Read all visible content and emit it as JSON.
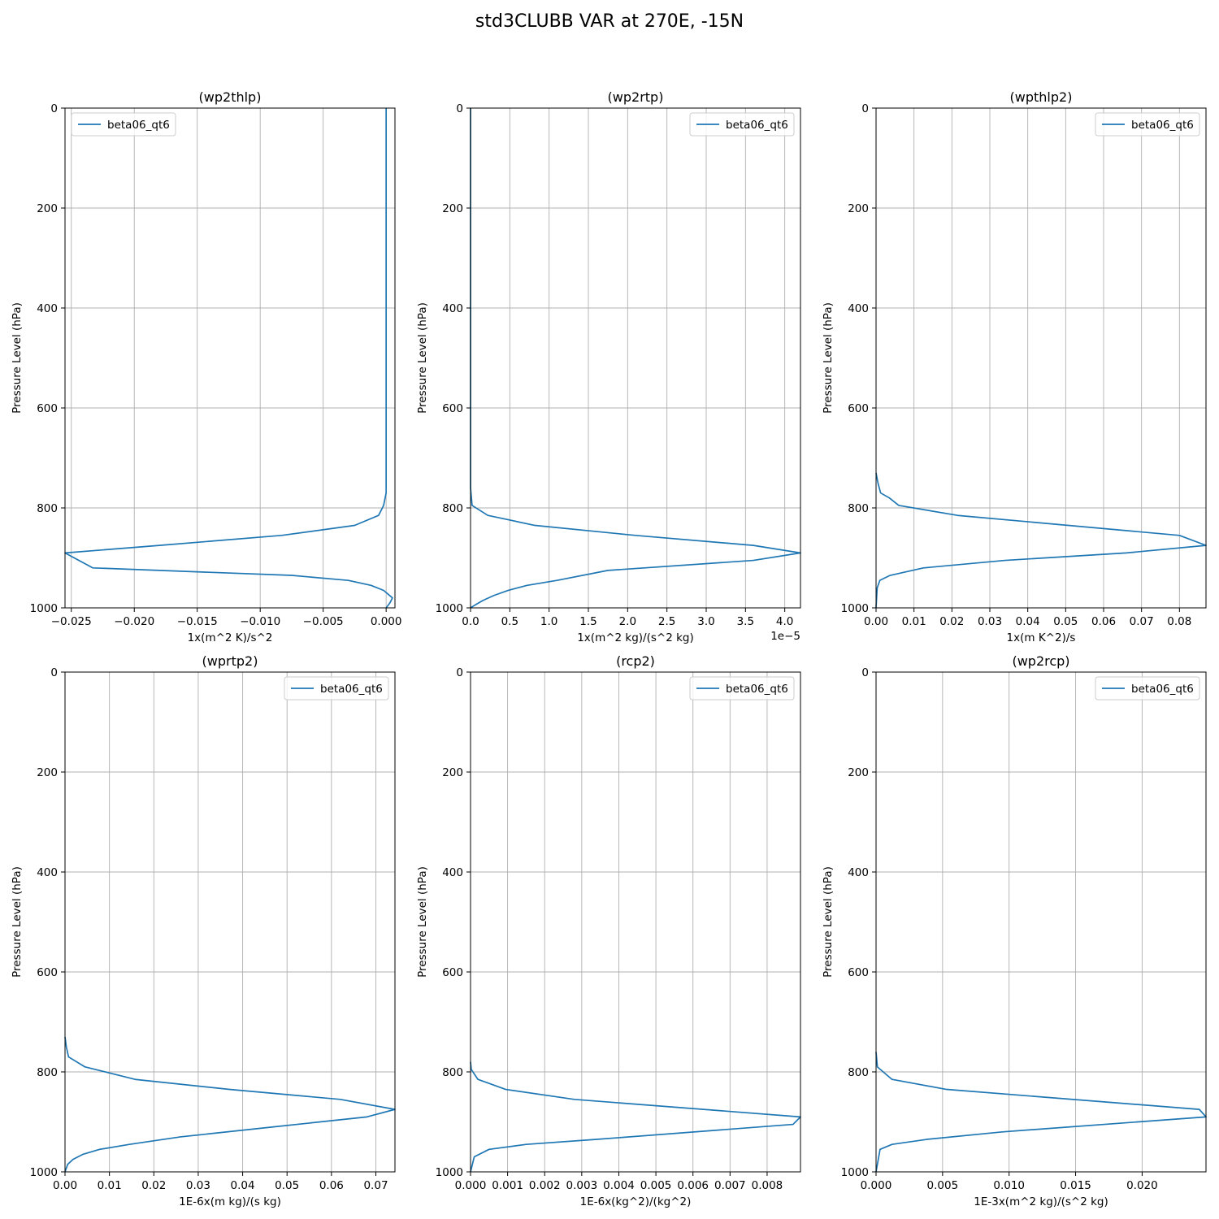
{
  "figure_title": "std3CLUBB VAR at 270E, -15N",
  "colors": {
    "series": "#1f77b4",
    "grid": "#b0b0b0",
    "axis": "#000000"
  },
  "chart_data": [
    {
      "type": "line",
      "title": "(wp2thlp)",
      "xlabel": "1x(m^2 K)/s^2",
      "ylabel": "Pressure Level (hPa)",
      "xlim": [
        -0.0255,
        0.0007
      ],
      "ylim": [
        1000,
        0
      ],
      "xticks": [
        -0.025,
        -0.02,
        -0.015,
        -0.01,
        -0.005,
        0.0
      ],
      "xtick_labels": [
        "−0.025",
        "−0.020",
        "−0.015",
        "−0.010",
        "−0.005",
        "0.000"
      ],
      "yticks": [
        0,
        200,
        400,
        600,
        800,
        1000
      ],
      "xoffset_label": "",
      "grid": true,
      "legend_position": "top-left",
      "series": [
        {
          "name": "beta06_qt6",
          "x": [
            0.0,
            0.0,
            0.0,
            0.0,
            0.0,
            0.0,
            -0.0002,
            -0.0006,
            -0.0025,
            -0.0083,
            -0.018,
            -0.0255,
            -0.0233,
            -0.0075,
            -0.003,
            -0.0012,
            -0.0002,
            0.0005,
            0.0003,
            0.0
          ],
          "y": [
            0,
            200,
            400,
            600,
            700,
            770,
            795,
            815,
            835,
            855,
            875,
            890,
            920,
            935,
            945,
            955,
            965,
            980,
            990,
            1000
          ]
        }
      ]
    },
    {
      "type": "line",
      "title": "(wp2rtp)",
      "xlabel": "1x(m^2 kg)/(s^2 kg)",
      "ylabel": "Pressure Level (hPa)",
      "xlim": [
        0,
        4.2
      ],
      "ylim": [
        1000,
        0
      ],
      "xticks": [
        0,
        0.5,
        1.0,
        1.5,
        2.0,
        2.5,
        3.0,
        3.5,
        4.0
      ],
      "xtick_labels": [
        "0.0",
        "0.5",
        "1.0",
        "1.5",
        "2.0",
        "2.5",
        "3.0",
        "3.5",
        "4.0"
      ],
      "yticks": [
        0,
        200,
        400,
        600,
        800,
        1000
      ],
      "xoffset_label": "1e−5",
      "grid": true,
      "legend_position": "top-right",
      "series": [
        {
          "name": "beta06_qt6",
          "x": [
            0,
            0,
            0,
            0.02,
            0.22,
            0.82,
            2.1,
            3.6,
            4.2,
            3.6,
            1.75,
            1.1,
            0.72,
            0.48,
            0.3,
            0.16,
            0.05,
            0
          ],
          "y": [
            0,
            400,
            760,
            795,
            815,
            835,
            855,
            875,
            890,
            905,
            925,
            945,
            955,
            965,
            975,
            985,
            995,
            1000
          ]
        }
      ]
    },
    {
      "type": "line",
      "title": "(wpthlp2)",
      "xlabel": "1x(m K^2)/s",
      "ylabel": "Pressure Level (hPa)",
      "xlim": [
        0,
        0.087
      ],
      "ylim": [
        1000,
        0
      ],
      "xticks": [
        0,
        0.01,
        0.02,
        0.03,
        0.04,
        0.05,
        0.06,
        0.07,
        0.08
      ],
      "xtick_labels": [
        "0.00",
        "0.01",
        "0.02",
        "0.03",
        "0.04",
        "0.05",
        "0.06",
        "0.07",
        "0.08"
      ],
      "yticks": [
        0,
        200,
        400,
        600,
        800,
        1000
      ],
      "xoffset_label": "",
      "grid": true,
      "legend_position": "top-right",
      "series": [
        {
          "name": "beta06_qt6",
          "x": [
            0,
            0.0005,
            0.0012,
            0.0035,
            0.006,
            0.0215,
            0.08,
            0.087,
            0.066,
            0.034,
            0.0125,
            0.0037,
            0.001,
            0.0003,
            0
          ],
          "y": [
            730,
            750,
            770,
            780,
            795,
            815,
            855,
            875,
            890,
            905,
            920,
            935,
            945,
            960,
            1000
          ]
        }
      ]
    },
    {
      "type": "line",
      "title": "(wprtp2)",
      "xlabel": "1E-6x(m kg)/(s kg)",
      "ylabel": "Pressure Level (hPa)",
      "xlim": [
        0,
        0.0743
      ],
      "ylim": [
        1000,
        0
      ],
      "xticks": [
        0,
        0.01,
        0.02,
        0.03,
        0.04,
        0.05,
        0.06,
        0.07
      ],
      "xtick_labels": [
        "0.00",
        "0.01",
        "0.02",
        "0.03",
        "0.04",
        "0.05",
        "0.06",
        "0.07"
      ],
      "yticks": [
        0,
        200,
        400,
        600,
        800,
        1000
      ],
      "xoffset_label": "",
      "grid": true,
      "legend_position": "top-right",
      "series": [
        {
          "name": "beta06_qt6",
          "x": [
            0,
            0.0003,
            0.0008,
            0.0045,
            0.0158,
            0.037,
            0.062,
            0.0743,
            0.068,
            0.047,
            0.026,
            0.0145,
            0.0078,
            0.004,
            0.0018,
            0.0006,
            0
          ],
          "y": [
            730,
            750,
            770,
            790,
            815,
            835,
            855,
            875,
            890,
            910,
            930,
            945,
            955,
            965,
            975,
            985,
            1000
          ]
        }
      ]
    },
    {
      "type": "line",
      "title": "(rcp2)",
      "xlabel": "1E-6x(kg^2)/(kg^2)",
      "ylabel": "Pressure Level (hPa)",
      "xlim": [
        0,
        0.0089
      ],
      "ylim": [
        1000,
        0
      ],
      "xticks": [
        0,
        0.001,
        0.002,
        0.003,
        0.004,
        0.005,
        0.006,
        0.007,
        0.008
      ],
      "xtick_labels": [
        "0.000",
        "0.001",
        "0.002",
        "0.003",
        "0.004",
        "0.005",
        "0.006",
        "0.007",
        "0.008"
      ],
      "yticks": [
        0,
        200,
        400,
        600,
        800,
        1000
      ],
      "xoffset_label": "",
      "grid": true,
      "legend_position": "top-right",
      "series": [
        {
          "name": "beta06_qt6",
          "x": [
            0,
            2e-05,
            0.0002,
            0.00095,
            0.0028,
            0.0089,
            0.0087,
            0.0034,
            0.0015,
            0.0005,
            0.0001,
            0
          ],
          "y": [
            780,
            795,
            815,
            835,
            855,
            890,
            905,
            935,
            945,
            955,
            970,
            1000
          ]
        }
      ]
    },
    {
      "type": "line",
      "title": "(wp2rcp)",
      "xlabel": "1E-3x(m^2 kg)/(s^2 kg)",
      "ylabel": "Pressure Level (hPa)",
      "xlim": [
        0,
        0.0248
      ],
      "ylim": [
        1000,
        0
      ],
      "xticks": [
        0,
        0.005,
        0.01,
        0.015,
        0.02
      ],
      "xtick_labels": [
        "0.000",
        "0.005",
        "0.010",
        "0.015",
        "0.020"
      ],
      "yticks": [
        0,
        200,
        400,
        600,
        800,
        1000
      ],
      "xoffset_label": "",
      "grid": true,
      "legend_position": "top-right",
      "series": [
        {
          "name": "beta06_qt6",
          "x": [
            0,
            0.0001,
            0.0012,
            0.0053,
            0.0243,
            0.0248,
            0.0095,
            0.0038,
            0.0012,
            0.0003,
            0
          ],
          "y": [
            760,
            790,
            815,
            835,
            875,
            890,
            920,
            935,
            945,
            955,
            1000
          ]
        }
      ]
    }
  ]
}
